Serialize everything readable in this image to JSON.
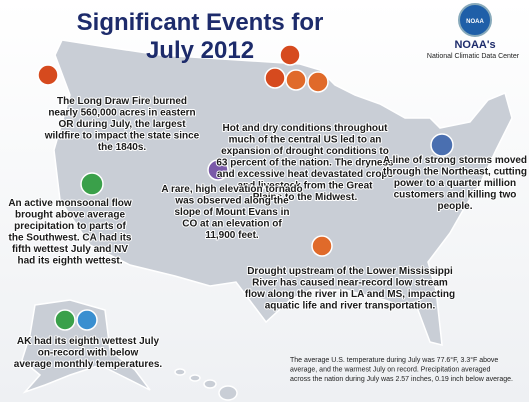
{
  "header": {
    "title_lines": [
      "Significant Events for",
      "July 2012"
    ]
  },
  "logo": {
    "mark": "NOAA",
    "name": "NOAA's",
    "center": "National Climatic Data Center"
  },
  "events": [
    {
      "lines": [
        "The Long Draw Fire burned",
        "nearly 560,000 acres in eastern",
        "OR during July, the largest",
        "wildfire to impact the state since",
        "the 1840s."
      ]
    },
    {
      "lines": [
        "Hot and dry conditions throughout",
        "much of the central US led to an",
        "expansion of drought conditions to",
        "63 percent of the nation. The dryness",
        "and excessive heat devastated crops",
        "and livestock from the Great",
        "Plains to the Midwest."
      ]
    },
    {
      "lines": [
        "A line of strong storms moved",
        "through the Northeast, cutting",
        "power to a quarter million",
        "customers and killing two",
        "people."
      ]
    },
    {
      "lines": [
        "An active monsoonal flow",
        "brought above average",
        "precipitation to parts of",
        "the Southwest. CA had its",
        "fifth wettest July and NV",
        "had its eighth wettest."
      ]
    },
    {
      "lines": [
        "A rare, high elevation tornado",
        "was observed along the",
        "slope of Mount Evans in",
        "CO at an elevation of",
        "11,900 feet."
      ]
    },
    {
      "lines": [
        "Drought upstream of the Lower Mississippi",
        "River has caused near-record low stream",
        "flow along the river in LA and MS, impacting",
        "aquatic life and river transportation."
      ]
    },
    {
      "lines": [
        "AK had its eighth wettest July",
        "on-record with below",
        "average monthly temperatures."
      ]
    }
  ],
  "footnote": {
    "lines": [
      "The average U.S. temperature during July was 77.6°F, 3.3°F above",
      "average, and the warmest July on record. Precipitation averaged",
      "across the nation during July was 2.57 inches, 0.19 inch below average."
    ]
  }
}
